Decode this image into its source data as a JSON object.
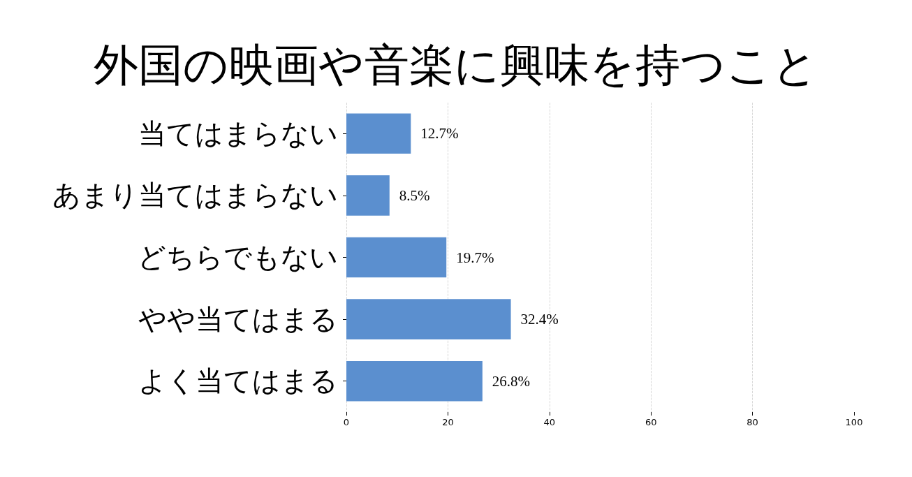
{
  "chart_data": {
    "type": "bar",
    "orientation": "horizontal",
    "title": "外国の映画や音楽に興味を持つこと",
    "categories": [
      "当てはまらない",
      "あまり当てはまらない",
      "どちらでもない",
      "やや当てはまる",
      "よく当てはまる"
    ],
    "values": [
      12.7,
      8.5,
      19.7,
      32.4,
      26.8
    ],
    "value_labels": [
      "12.7%",
      "8.5%",
      "19.7%",
      "32.4%",
      "26.8%"
    ],
    "color": "#5b8fcf",
    "xlim": [
      0,
      100
    ],
    "xticks": [
      0,
      20,
      40,
      60,
      80,
      100
    ],
    "grid": "x"
  }
}
